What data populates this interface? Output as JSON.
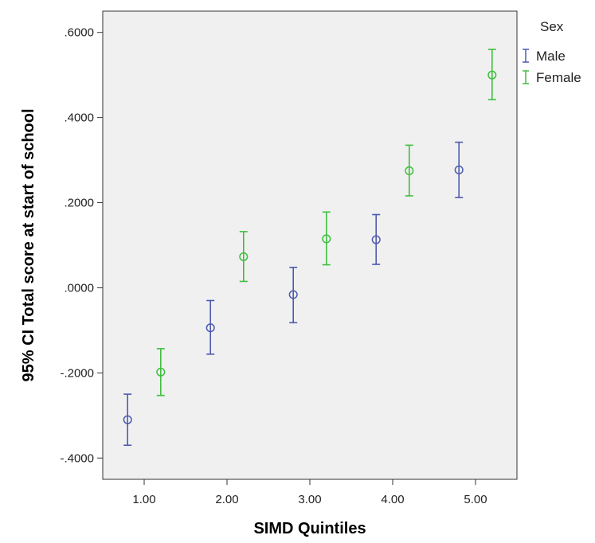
{
  "chart_data": {
    "type": "errorbar",
    "xlabel": "SIMD Quintiles",
    "ylabel": "95% CI Total score at start of school",
    "xlim": [
      0.5,
      5.5
    ],
    "ylim": [
      -0.45,
      0.65
    ],
    "x_ticks": [
      1,
      2,
      3,
      4,
      5
    ],
    "x_tick_labels": [
      "1.00",
      "2.00",
      "3.00",
      "4.00",
      "5.00"
    ],
    "y_ticks": [
      -0.4,
      -0.2,
      0.0,
      0.2,
      0.4,
      0.6
    ],
    "y_tick_labels": [
      "-.4000",
      "-.2000",
      ".0000",
      ".2000",
      ".4000",
      ".6000"
    ],
    "grid": false,
    "legend": {
      "title": "Sex",
      "position": "outside-right-top"
    },
    "series": [
      {
        "name": "Male",
        "color": "#4c5ab0",
        "offset": -0.2,
        "points": [
          {
            "x": 1,
            "mean": -0.31,
            "lower": -0.37,
            "upper": -0.25
          },
          {
            "x": 2,
            "mean": -0.094,
            "lower": -0.156,
            "upper": -0.03
          },
          {
            "x": 3,
            "mean": -0.016,
            "lower": -0.082,
            "upper": 0.048
          },
          {
            "x": 4,
            "mean": 0.113,
            "lower": 0.055,
            "upper": 0.172
          },
          {
            "x": 5,
            "mean": 0.277,
            "lower": 0.212,
            "upper": 0.342
          }
        ]
      },
      {
        "name": "Female",
        "color": "#3ebf3e",
        "offset": 0.2,
        "points": [
          {
            "x": 1,
            "mean": -0.198,
            "lower": -0.253,
            "upper": -0.143
          },
          {
            "x": 2,
            "mean": 0.073,
            "lower": 0.015,
            "upper": 0.132
          },
          {
            "x": 3,
            "mean": 0.115,
            "lower": 0.054,
            "upper": 0.178
          },
          {
            "x": 4,
            "mean": 0.275,
            "lower": 0.216,
            "upper": 0.335
          },
          {
            "x": 5,
            "mean": 0.5,
            "lower": 0.442,
            "upper": 0.56
          }
        ]
      }
    ]
  }
}
